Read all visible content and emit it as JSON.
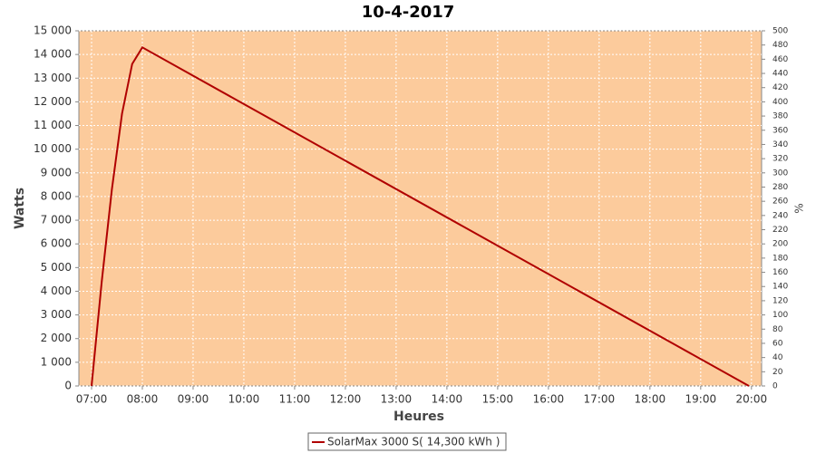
{
  "chart_data": {
    "type": "line",
    "title": "10-4-2017",
    "xlabel": "Heures",
    "ylabel": "Watts",
    "y2label": "%",
    "x": [
      7.0,
      7.2,
      7.4,
      7.6,
      7.8,
      8.0,
      19.95
    ],
    "series": [
      {
        "name": "SolarMax 3000 S( 14,300 kWh )",
        "color": "#b00000",
        "values": [
          0,
          4400,
          8300,
          11500,
          13600,
          14300,
          0
        ]
      }
    ],
    "xlim": [
      6.75,
      20.2
    ],
    "xticks": [
      {
        "value": 7,
        "label": "07:00"
      },
      {
        "value": 8,
        "label": "08:00"
      },
      {
        "value": 9,
        "label": "09:00"
      },
      {
        "value": 10,
        "label": "10:00"
      },
      {
        "value": 11,
        "label": "11:00"
      },
      {
        "value": 12,
        "label": "12:00"
      },
      {
        "value": 13,
        "label": "13:00"
      },
      {
        "value": 14,
        "label": "14:00"
      },
      {
        "value": 15,
        "label": "15:00"
      },
      {
        "value": 16,
        "label": "16:00"
      },
      {
        "value": 17,
        "label": "17:00"
      },
      {
        "value": 18,
        "label": "18:00"
      },
      {
        "value": 19,
        "label": "19:00"
      },
      {
        "value": 20,
        "label": "20:00"
      }
    ],
    "ylim": [
      0,
      15000
    ],
    "yticks": [
      0,
      {
        "value": 1000,
        "label": "1 000"
      },
      {
        "value": 2000,
        "label": "2 000"
      },
      {
        "value": 3000,
        "label": "3 000"
      },
      {
        "value": 4000,
        "label": "4 000"
      },
      {
        "value": 5000,
        "label": "5 000"
      },
      {
        "value": 6000,
        "label": "6 000"
      },
      {
        "value": 7000,
        "label": "7 000"
      },
      {
        "value": 8000,
        "label": "8 000"
      },
      {
        "value": 9000,
        "label": "9 000"
      },
      {
        "value": 10000,
        "label": "10 000"
      },
      {
        "value": 11000,
        "label": "11 000"
      },
      {
        "value": 12000,
        "label": "12 000"
      },
      {
        "value": 13000,
        "label": "13 000"
      },
      {
        "value": 14000,
        "label": "14 000"
      },
      {
        "value": 15000,
        "label": "15 000"
      }
    ],
    "y2lim": [
      0,
      500
    ],
    "y2ticks": [
      0,
      20,
      40,
      60,
      80,
      100,
      120,
      140,
      160,
      180,
      200,
      220,
      240,
      260,
      280,
      300,
      320,
      340,
      360,
      380,
      400,
      420,
      440,
      460,
      480,
      500
    ],
    "grid": true,
    "background": "#fccb9c"
  }
}
